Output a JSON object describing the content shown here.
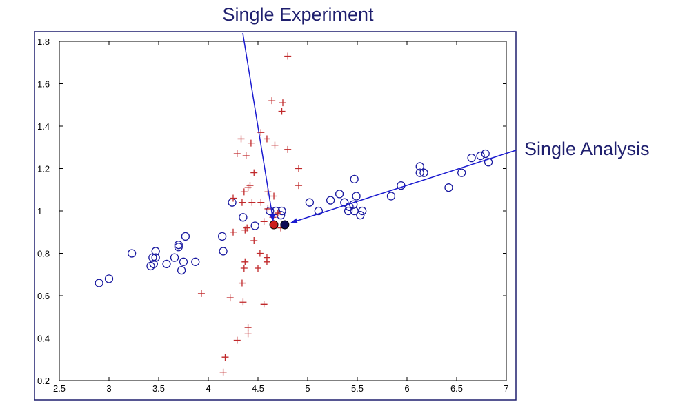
{
  "chart_data": {
    "type": "scatter",
    "title": "",
    "xlabel": "",
    "ylabel": "",
    "xlim": [
      2.5,
      7
    ],
    "ylim": [
      0.2,
      1.8
    ],
    "x_ticks": [
      "2.5",
      "3",
      "3.5",
      "4",
      "4.5",
      "5",
      "5.5",
      "6",
      "6.5",
      "7"
    ],
    "y_ticks": [
      "0.2",
      "0.4",
      "0.6",
      "0.8",
      "1",
      "1.2",
      "1.4",
      "1.6",
      "1.8"
    ],
    "series": [
      {
        "name": "circles",
        "marker": "o",
        "color": "#1a1aa0",
        "points": [
          [
            2.9,
            0.66
          ],
          [
            3.0,
            0.68
          ],
          [
            3.23,
            0.8
          ],
          [
            3.42,
            0.74
          ],
          [
            3.44,
            0.78
          ],
          [
            3.45,
            0.75
          ],
          [
            3.47,
            0.78
          ],
          [
            3.47,
            0.81
          ],
          [
            3.58,
            0.75
          ],
          [
            3.66,
            0.78
          ],
          [
            3.7,
            0.83
          ],
          [
            3.7,
            0.84
          ],
          [
            3.73,
            0.72
          ],
          [
            3.75,
            0.76
          ],
          [
            3.77,
            0.88
          ],
          [
            3.87,
            0.76
          ],
          [
            4.14,
            0.88
          ],
          [
            4.15,
            0.81
          ],
          [
            4.24,
            1.04
          ],
          [
            4.35,
            0.97
          ],
          [
            4.47,
            0.93
          ],
          [
            4.62,
            1.0
          ],
          [
            4.68,
            1.0
          ],
          [
            4.73,
            0.98
          ],
          [
            4.74,
            1.0
          ],
          [
            5.02,
            1.04
          ],
          [
            5.11,
            1.0
          ],
          [
            5.23,
            1.05
          ],
          [
            5.32,
            1.08
          ],
          [
            5.37,
            1.04
          ],
          [
            5.41,
            1.0
          ],
          [
            5.42,
            1.02
          ],
          [
            5.46,
            1.03
          ],
          [
            5.47,
            1.15
          ],
          [
            5.49,
            1.07
          ],
          [
            5.47,
            1.0
          ],
          [
            5.53,
            0.98
          ],
          [
            5.55,
            1.0
          ],
          [
            5.84,
            1.07
          ],
          [
            5.94,
            1.12
          ],
          [
            6.13,
            1.21
          ],
          [
            6.13,
            1.18
          ],
          [
            6.17,
            1.18
          ],
          [
            6.42,
            1.11
          ],
          [
            6.55,
            1.18
          ],
          [
            6.65,
            1.25
          ],
          [
            6.74,
            1.26
          ],
          [
            6.79,
            1.27
          ],
          [
            6.82,
            1.23
          ]
        ]
      },
      {
        "name": "crosses",
        "marker": "+",
        "color": "#c0282a",
        "points": [
          [
            4.8,
            1.73
          ],
          [
            4.64,
            1.52
          ],
          [
            4.75,
            1.51
          ],
          [
            4.74,
            1.47
          ],
          [
            4.53,
            1.37
          ],
          [
            4.33,
            1.34
          ],
          [
            4.43,
            1.32
          ],
          [
            4.59,
            1.34
          ],
          [
            4.67,
            1.31
          ],
          [
            4.8,
            1.29
          ],
          [
            4.29,
            1.27
          ],
          [
            4.38,
            1.26
          ],
          [
            4.46,
            1.18
          ],
          [
            4.91,
            1.2
          ],
          [
            4.4,
            1.11
          ],
          [
            4.42,
            1.12
          ],
          [
            4.36,
            1.09
          ],
          [
            4.6,
            1.09
          ],
          [
            4.91,
            1.12
          ],
          [
            4.25,
            1.06
          ],
          [
            4.34,
            1.04
          ],
          [
            4.44,
            1.04
          ],
          [
            4.53,
            1.04
          ],
          [
            4.66,
            1.07
          ],
          [
            4.6,
            1.01
          ],
          [
            4.7,
            0.99
          ],
          [
            4.56,
            0.95
          ],
          [
            4.39,
            0.92
          ],
          [
            4.37,
            0.91
          ],
          [
            4.65,
            0.97
          ],
          [
            4.73,
            0.92
          ],
          [
            4.25,
            0.9
          ],
          [
            4.46,
            0.86
          ],
          [
            4.52,
            0.8
          ],
          [
            4.59,
            0.78
          ],
          [
            4.37,
            0.76
          ],
          [
            4.59,
            0.76
          ],
          [
            4.36,
            0.73
          ],
          [
            4.5,
            0.73
          ],
          [
            3.93,
            0.61
          ],
          [
            4.34,
            0.66
          ],
          [
            4.22,
            0.59
          ],
          [
            4.35,
            0.57
          ],
          [
            4.56,
            0.56
          ],
          [
            4.4,
            0.45
          ],
          [
            4.4,
            0.42
          ],
          [
            4.29,
            0.39
          ],
          [
            4.17,
            0.31
          ],
          [
            4.15,
            0.24
          ]
        ]
      },
      {
        "name": "Single Experiment point",
        "marker": "filled-circle",
        "color": "#cc1e1e",
        "points": [
          [
            4.66,
            0.935
          ]
        ]
      },
      {
        "name": "Single Analysis point",
        "marker": "filled-circle",
        "color": "#0b0b55",
        "points": [
          [
            4.77,
            0.935
          ]
        ]
      }
    ],
    "annotations": [
      {
        "text": "Single Experiment",
        "points_to": [
          4.66,
          0.935
        ]
      },
      {
        "text": "Single Analysis",
        "points_to": [
          4.77,
          0.935
        ]
      }
    ]
  }
}
